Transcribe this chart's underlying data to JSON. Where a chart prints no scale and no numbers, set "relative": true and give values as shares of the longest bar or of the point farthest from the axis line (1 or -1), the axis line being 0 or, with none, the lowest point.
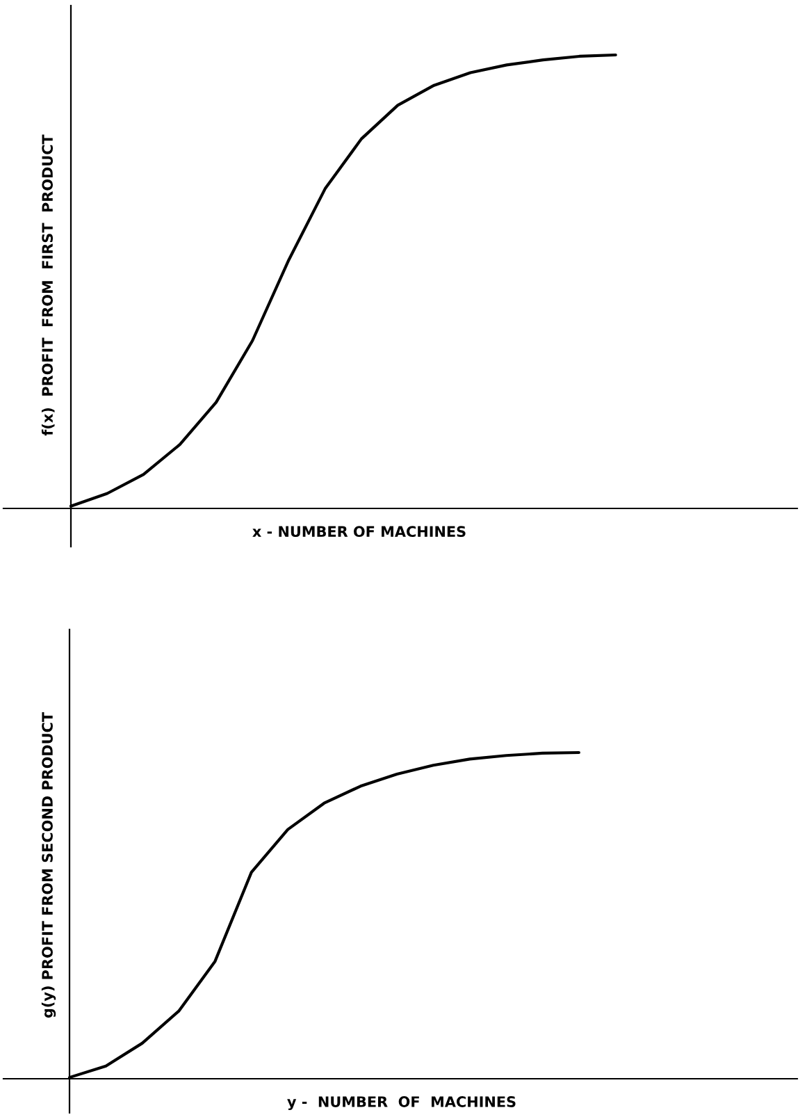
{
  "chart_data": [
    {
      "type": "line",
      "relative": true,
      "xlabel": "x - NUMBER OF MACHINES",
      "ylabel": "f(x)  PROFIT  FROM  FIRST  PRODUCT",
      "categories": [
        null,
        null,
        null,
        null,
        null,
        null,
        null,
        null,
        null,
        null,
        null,
        null,
        null,
        null,
        null,
        null,
        null,
        null,
        null,
        null,
        null
      ],
      "series": [
        {
          "color": "#000000",
          "values": [
            0.005,
            0.033,
            0.075,
            0.141,
            0.234,
            0.37,
            0.548,
            0.705,
            0.815,
            0.889,
            0.933,
            0.961,
            0.978,
            0.989,
            0.997,
            1.0,
            null,
            null,
            null,
            null,
            null
          ]
        }
      ],
      "marker": "none",
      "line_style": "solid"
    },
    {
      "type": "line",
      "relative": true,
      "xlabel": "y -  NUMBER  OF  MACHINES",
      "ylabel": "g(y) PROFIT FROM SECOND PRODUCT",
      "categories": [
        null,
        null,
        null,
        null,
        null,
        null,
        null,
        null,
        null,
        null,
        null,
        null,
        null,
        null,
        null,
        null,
        null,
        null,
        null,
        null,
        null
      ],
      "series": [
        {
          "color": "#000000",
          "values": [
            0.004,
            0.039,
            0.109,
            0.207,
            0.36,
            0.633,
            0.764,
            0.845,
            0.897,
            0.934,
            0.961,
            0.98,
            0.991,
            0.998,
            1.0,
            null,
            null,
            null,
            null,
            null,
            null
          ]
        }
      ],
      "marker": "none",
      "line_style": "solid"
    }
  ]
}
